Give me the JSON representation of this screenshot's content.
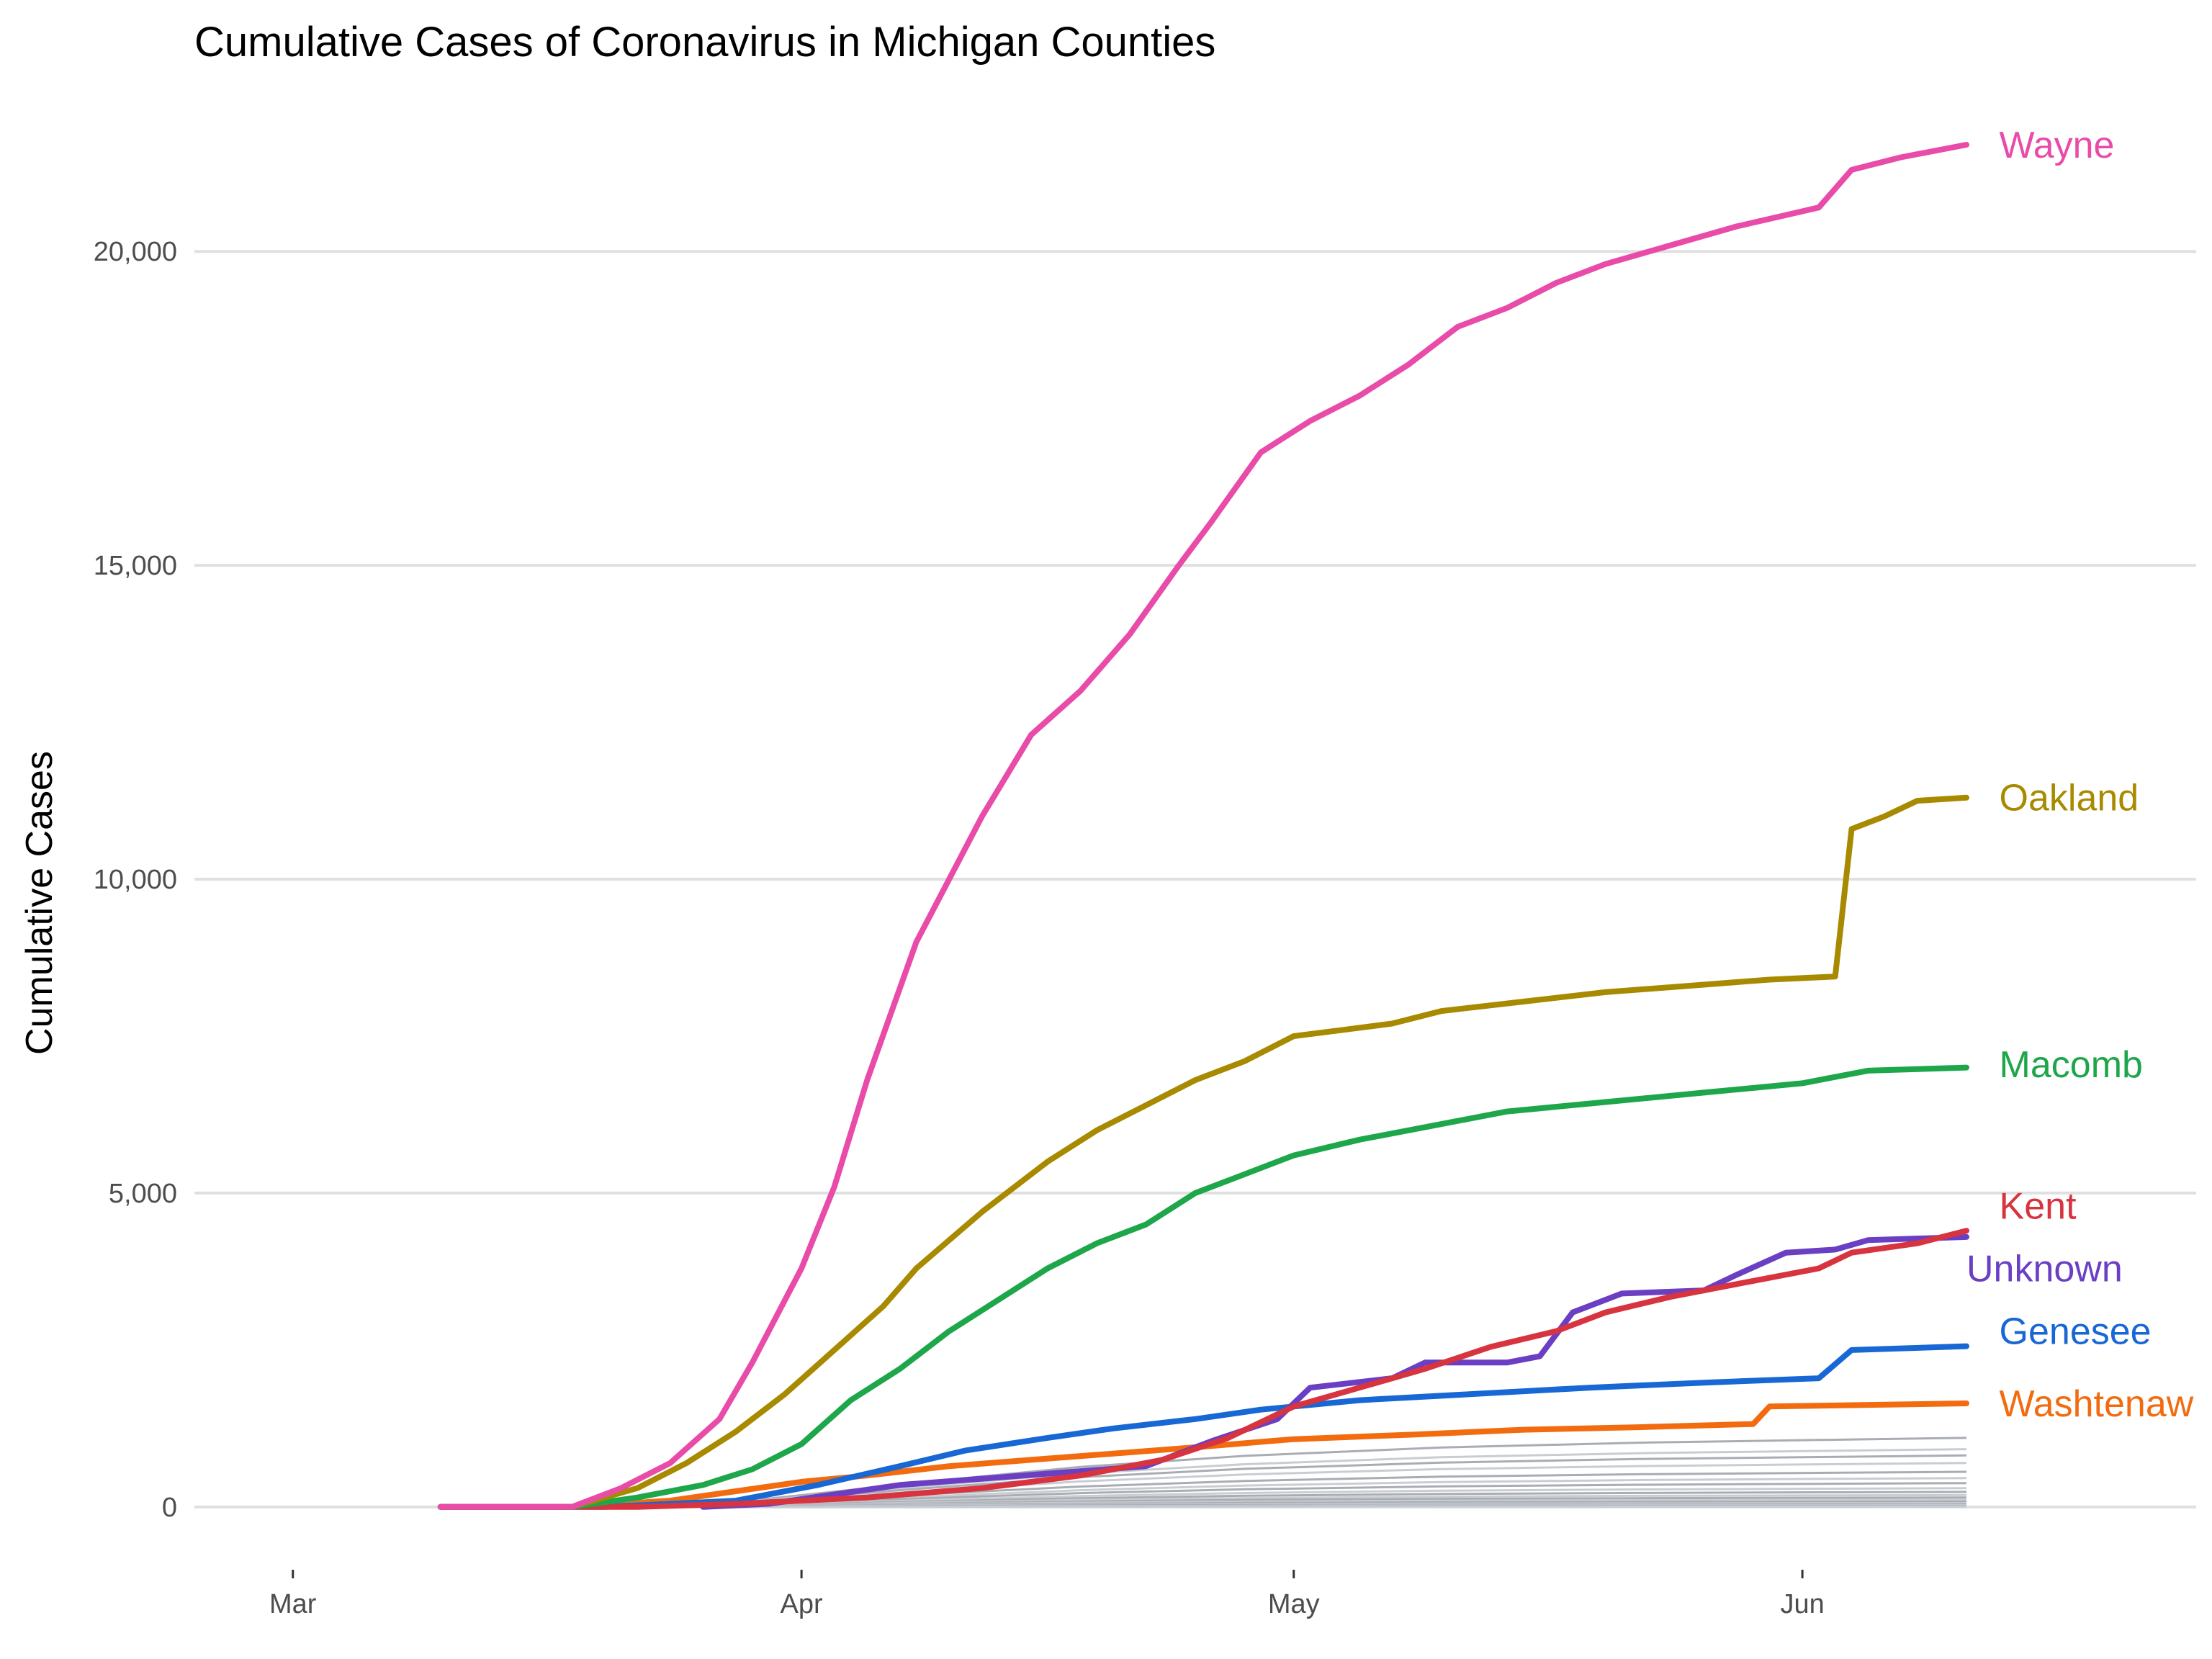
{
  "chart_data": {
    "type": "line",
    "title": "Cumulative Cases of Coronavirus in Michigan Counties",
    "xlabel": "",
    "ylabel": "Cumulative Cases",
    "x_ticks": [
      {
        "date": "2020-03-01",
        "label": "Mar"
      },
      {
        "date": "2020-04-01",
        "label": "Apr"
      },
      {
        "date": "2020-05-01",
        "label": "May"
      },
      {
        "date": "2020-06-01",
        "label": "Jun"
      }
    ],
    "y_ticks": [
      {
        "value": 0,
        "label": "0"
      },
      {
        "value": 5000,
        "label": "5,000"
      },
      {
        "value": 10000,
        "label": "10,000"
      },
      {
        "value": 15000,
        "label": "15,000"
      },
      {
        "value": 20000,
        "label": "20,000"
      }
    ],
    "xlim": [
      "2020-02-24",
      "2020-06-25"
    ],
    "ylim": [
      -1000,
      22400
    ],
    "grid": "horizontal major",
    "legend": "direct labels at line ends",
    "series": [
      {
        "name": "Wayne",
        "color": "#E84BA8",
        "points": [
          [
            "2020-03-10",
            0
          ],
          [
            "2020-03-18",
            0
          ],
          [
            "2020-03-21",
            300
          ],
          [
            "2020-03-24",
            700
          ],
          [
            "2020-03-27",
            1400
          ],
          [
            "2020-03-29",
            2300
          ],
          [
            "2020-03-31",
            3300
          ],
          [
            "2020-04-01",
            3800
          ],
          [
            "2020-04-03",
            5100
          ],
          [
            "2020-04-05",
            6800
          ],
          [
            "2020-04-08",
            9000
          ],
          [
            "2020-04-10",
            10000
          ],
          [
            "2020-04-12",
            11000
          ],
          [
            "2020-04-15",
            12300
          ],
          [
            "2020-04-18",
            13000
          ],
          [
            "2020-04-21",
            13900
          ],
          [
            "2020-04-24",
            15000
          ],
          [
            "2020-04-26",
            15700
          ],
          [
            "2020-04-29",
            16800
          ],
          [
            "2020-05-02",
            17300
          ],
          [
            "2020-05-05",
            17700
          ],
          [
            "2020-05-08",
            18200
          ],
          [
            "2020-05-11",
            18800
          ],
          [
            "2020-05-14",
            19100
          ],
          [
            "2020-05-17",
            19500
          ],
          [
            "2020-05-20",
            19800
          ],
          [
            "2020-05-24",
            20100
          ],
          [
            "2020-05-28",
            20400
          ],
          [
            "2020-06-02",
            20700
          ],
          [
            "2020-06-04",
            21300
          ],
          [
            "2020-06-07",
            21500
          ],
          [
            "2020-06-11",
            21700
          ]
        ]
      },
      {
        "name": "Oakland",
        "color": "#A88A00",
        "points": [
          [
            "2020-03-10",
            0
          ],
          [
            "2020-03-18",
            0
          ],
          [
            "2020-03-22",
            300
          ],
          [
            "2020-03-25",
            700
          ],
          [
            "2020-03-28",
            1200
          ],
          [
            "2020-03-31",
            1800
          ],
          [
            "2020-04-03",
            2500
          ],
          [
            "2020-04-06",
            3200
          ],
          [
            "2020-04-08",
            3800
          ],
          [
            "2020-04-12",
            4700
          ],
          [
            "2020-04-16",
            5500
          ],
          [
            "2020-04-19",
            6000
          ],
          [
            "2020-04-22",
            6400
          ],
          [
            "2020-04-25",
            6800
          ],
          [
            "2020-04-28",
            7100
          ],
          [
            "2020-05-01",
            7500
          ],
          [
            "2020-05-04",
            7600
          ],
          [
            "2020-05-07",
            7700
          ],
          [
            "2020-05-10",
            7900
          ],
          [
            "2020-05-15",
            8050
          ],
          [
            "2020-05-20",
            8200
          ],
          [
            "2020-05-25",
            8300
          ],
          [
            "2020-05-30",
            8400
          ],
          [
            "2020-06-03",
            8450
          ],
          [
            "2020-06-04",
            10800
          ],
          [
            "2020-06-06",
            11000
          ],
          [
            "2020-06-08",
            11250
          ],
          [
            "2020-06-11",
            11300
          ]
        ]
      },
      {
        "name": "Macomb",
        "color": "#1EA64A",
        "points": [
          [
            "2020-03-10",
            0
          ],
          [
            "2020-03-18",
            0
          ],
          [
            "2020-03-22",
            150
          ],
          [
            "2020-03-26",
            350
          ],
          [
            "2020-03-29",
            600
          ],
          [
            "2020-04-01",
            1000
          ],
          [
            "2020-04-04",
            1700
          ],
          [
            "2020-04-07",
            2200
          ],
          [
            "2020-04-10",
            2800
          ],
          [
            "2020-04-13",
            3300
          ],
          [
            "2020-04-16",
            3800
          ],
          [
            "2020-04-19",
            4200
          ],
          [
            "2020-04-22",
            4500
          ],
          [
            "2020-04-25",
            5000
          ],
          [
            "2020-04-28",
            5300
          ],
          [
            "2020-05-01",
            5600
          ],
          [
            "2020-05-05",
            5850
          ],
          [
            "2020-05-09",
            6050
          ],
          [
            "2020-05-14",
            6300
          ],
          [
            "2020-05-20",
            6450
          ],
          [
            "2020-05-26",
            6600
          ],
          [
            "2020-06-01",
            6750
          ],
          [
            "2020-06-05",
            6950
          ],
          [
            "2020-06-11",
            7000
          ]
        ]
      },
      {
        "name": "Kent",
        "color": "#D7343F",
        "points": [
          [
            "2020-03-10",
            0
          ],
          [
            "2020-03-22",
            0
          ],
          [
            "2020-03-28",
            50
          ],
          [
            "2020-04-05",
            150
          ],
          [
            "2020-04-12",
            300
          ],
          [
            "2020-04-18",
            500
          ],
          [
            "2020-04-23",
            750
          ],
          [
            "2020-04-27",
            1100
          ],
          [
            "2020-05-01",
            1600
          ],
          [
            "2020-05-05",
            1900
          ],
          [
            "2020-05-09",
            2200
          ],
          [
            "2020-05-13",
            2550
          ],
          [
            "2020-05-17",
            2800
          ],
          [
            "2020-05-20",
            3100
          ],
          [
            "2020-05-24",
            3350
          ],
          [
            "2020-05-28",
            3550
          ],
          [
            "2020-06-02",
            3800
          ],
          [
            "2020-06-04",
            4050
          ],
          [
            "2020-06-08",
            4200
          ],
          [
            "2020-06-11",
            4400
          ]
        ]
      },
      {
        "name": "Unknown",
        "color": "#6B3FC4",
        "points": [
          [
            "2020-03-26",
            0
          ],
          [
            "2020-03-30",
            50
          ],
          [
            "2020-04-03",
            200
          ],
          [
            "2020-04-07",
            350
          ],
          [
            "2020-04-12",
            450
          ],
          [
            "2020-04-17",
            550
          ],
          [
            "2020-04-22",
            650
          ],
          [
            "2020-04-26",
            1050
          ],
          [
            "2020-04-30",
            1400
          ],
          [
            "2020-05-02",
            1900
          ],
          [
            "2020-05-07",
            2050
          ],
          [
            "2020-05-09",
            2300
          ],
          [
            "2020-05-14",
            2300
          ],
          [
            "2020-05-16",
            2400
          ],
          [
            "2020-05-18",
            3100
          ],
          [
            "2020-05-21",
            3400
          ],
          [
            "2020-05-26",
            3450
          ],
          [
            "2020-05-28",
            3700
          ],
          [
            "2020-05-31",
            4050
          ],
          [
            "2020-06-03",
            4100
          ],
          [
            "2020-06-05",
            4250
          ],
          [
            "2020-06-11",
            4300
          ]
        ]
      },
      {
        "name": "Genesee",
        "color": "#1767D4",
        "points": [
          [
            "2020-03-10",
            0
          ],
          [
            "2020-03-20",
            0
          ],
          [
            "2020-03-28",
            100
          ],
          [
            "2020-04-02",
            350
          ],
          [
            "2020-04-07",
            650
          ],
          [
            "2020-04-11",
            900
          ],
          [
            "2020-04-16",
            1100
          ],
          [
            "2020-04-20",
            1250
          ],
          [
            "2020-04-25",
            1400
          ],
          [
            "2020-04-29",
            1550
          ],
          [
            "2020-05-05",
            1700
          ],
          [
            "2020-05-12",
            1800
          ],
          [
            "2020-05-19",
            1900
          ],
          [
            "2020-05-26",
            1980
          ],
          [
            "2020-06-02",
            2050
          ],
          [
            "2020-06-04",
            2500
          ],
          [
            "2020-06-11",
            2560
          ]
        ]
      },
      {
        "name": "Washtenaw",
        "color": "#F26B0F",
        "points": [
          [
            "2020-03-10",
            0
          ],
          [
            "2020-03-18",
            0
          ],
          [
            "2020-03-24",
            100
          ],
          [
            "2020-03-28",
            250
          ],
          [
            "2020-04-01",
            400
          ],
          [
            "2020-04-05",
            500
          ],
          [
            "2020-04-10",
            650
          ],
          [
            "2020-04-15",
            750
          ],
          [
            "2020-04-20",
            850
          ],
          [
            "2020-04-25",
            950
          ],
          [
            "2020-05-01",
            1080
          ],
          [
            "2020-05-08",
            1150
          ],
          [
            "2020-05-15",
            1230
          ],
          [
            "2020-05-22",
            1270
          ],
          [
            "2020-05-29",
            1320
          ],
          [
            "2020-05-30",
            1600
          ],
          [
            "2020-06-11",
            1650
          ]
        ]
      }
    ],
    "other_counties": {
      "color": "#A8ADB4",
      "end_values": [
        1100,
        920,
        820,
        700,
        560,
        460,
        380,
        300,
        240,
        190,
        150,
        115,
        85,
        60,
        40,
        25,
        12,
        5
      ]
    },
    "label_positions": {
      "Wayne": {
        "date": "2020-06-13",
        "value": 21700
      },
      "Oakland": {
        "date": "2020-06-13",
        "value": 11300
      },
      "Macomb": {
        "date": "2020-06-13",
        "value": 7050
      },
      "Kent": {
        "date": "2020-06-13",
        "value": 4800
      },
      "Unknown": {
        "date": "2020-06-11",
        "value": 3800
      },
      "Genesee": {
        "date": "2020-06-13",
        "value": 2800
      },
      "Washtenaw": {
        "date": "2020-06-13",
        "value": 1650
      }
    }
  }
}
